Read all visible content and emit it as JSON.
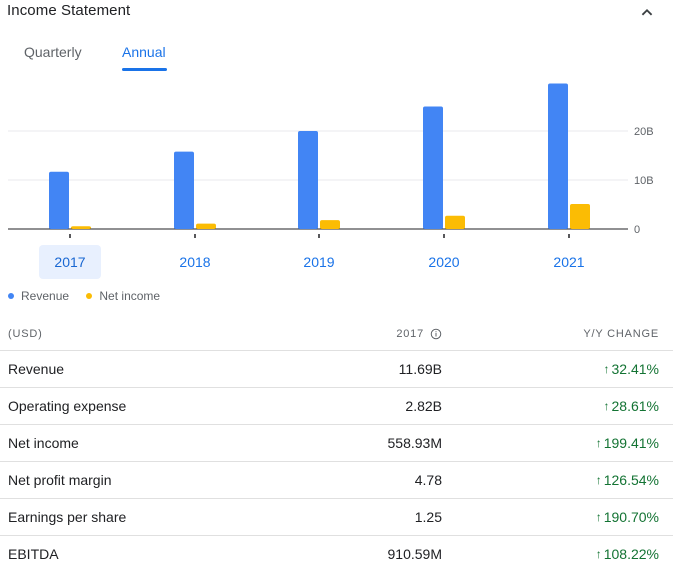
{
  "header": {
    "title": "Income Statement",
    "collapse_icon": "chevron-up-icon"
  },
  "tabs": [
    {
      "label": "Quarterly",
      "selected": false
    },
    {
      "label": "Annual",
      "selected": true
    }
  ],
  "chart_data": {
    "type": "bar",
    "categories": [
      "2017",
      "2018",
      "2019",
      "2020",
      "2021"
    ],
    "series": [
      {
        "name": "Revenue",
        "color": "#4285f4",
        "values": [
          11.69,
          15.8,
          20.0,
          25.0,
          29.7
        ]
      },
      {
        "name": "Net income",
        "color": "#fbbc04",
        "values": [
          0.56,
          1.1,
          1.8,
          2.7,
          5.1
        ]
      }
    ],
    "yticks": [
      {
        "value": 0,
        "label": "0"
      },
      {
        "value": 10,
        "label": "10B"
      },
      {
        "value": 20,
        "label": "20B"
      }
    ],
    "ylim": [
      0,
      30
    ],
    "selected_category": "2017",
    "legend_position": "bottom-left"
  },
  "table": {
    "col_label": "(USD)",
    "col_year": "2017",
    "col_change": "Y/Y CHANGE",
    "info_icon": "info-icon",
    "change_icon": "arrow-up-icon",
    "rows": [
      {
        "label": "Revenue",
        "value": "11.69B",
        "change": "32.41%",
        "direction": "up"
      },
      {
        "label": "Operating expense",
        "value": "2.82B",
        "change": "28.61%",
        "direction": "up"
      },
      {
        "label": "Net income",
        "value": "558.93M",
        "change": "199.41%",
        "direction": "up"
      },
      {
        "label": "Net profit margin",
        "value": "4.78",
        "change": "126.54%",
        "direction": "up"
      },
      {
        "label": "Earnings per share",
        "value": "1.25",
        "change": "190.70%",
        "direction": "up"
      },
      {
        "label": "EBITDA",
        "value": "910.59M",
        "change": "108.22%",
        "direction": "up"
      }
    ]
  }
}
